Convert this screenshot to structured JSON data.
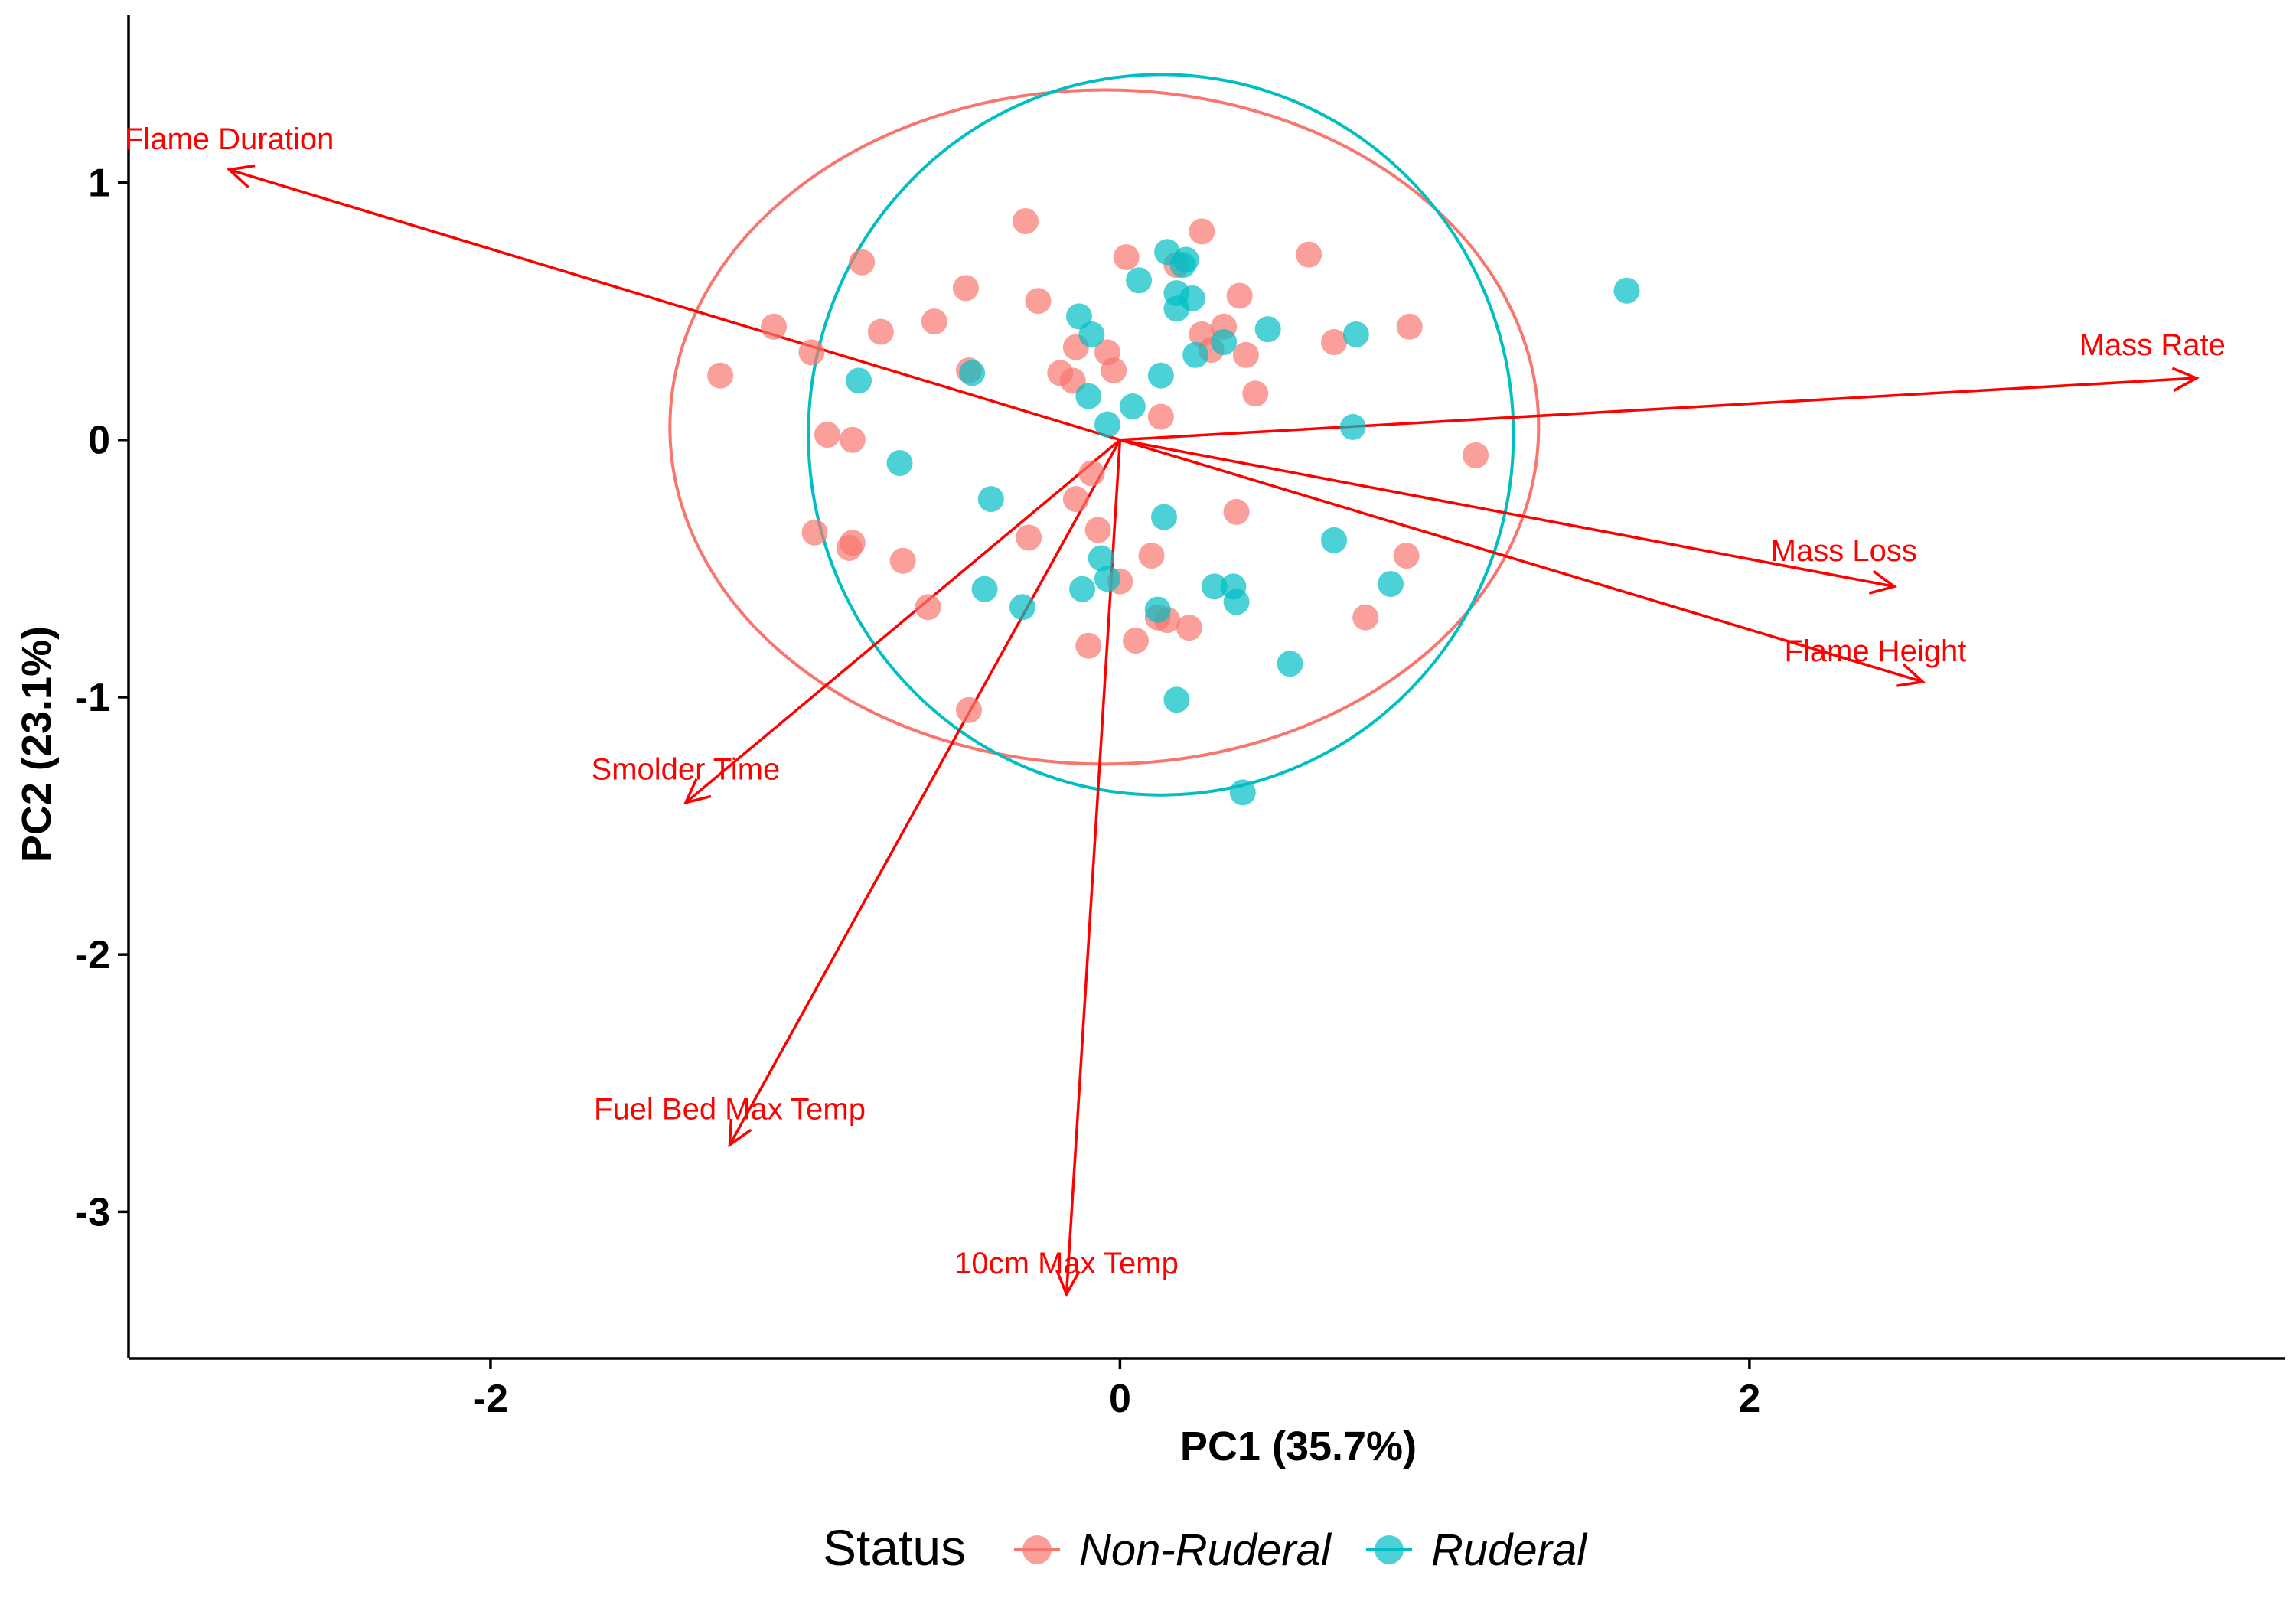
{
  "chart_data": {
    "type": "scatter",
    "subtype": "pca-biplot",
    "xlabel": "PC1 (35.7%)",
    "ylabel": "PC2 (23.1%)",
    "xlim": [
      -3.15,
      3.7
    ],
    "ylim": [
      -3.57,
      1.65
    ],
    "x_ticks": [
      -2,
      0,
      2
    ],
    "y_ticks": [
      1,
      0,
      -1,
      -2,
      -3
    ],
    "grid": false,
    "legend": {
      "title": "Status",
      "position": "bottom",
      "entries": [
        {
          "name": "Non-Ruderal",
          "color": "#F8766D"
        },
        {
          "name": "Ruderal",
          "color": "#00BFC4"
        }
      ]
    },
    "series": [
      {
        "name": "Non-Ruderal",
        "color": "#F8766D",
        "points": [
          [
            -1.27,
            0.25
          ],
          [
            -1.1,
            0.44
          ],
          [
            -0.98,
            0.34
          ],
          [
            -0.93,
            0.02
          ],
          [
            -0.85,
            0.0
          ],
          [
            -0.82,
            0.69
          ],
          [
            -0.76,
            0.42
          ],
          [
            -0.59,
            0.46
          ],
          [
            -0.49,
            0.59
          ],
          [
            -0.48,
            0.27
          ],
          [
            -0.3,
            0.85
          ],
          [
            -0.26,
            0.54
          ],
          [
            -0.19,
            0.26
          ],
          [
            -0.14,
            0.36
          ],
          [
            -0.15,
            0.23
          ],
          [
            -0.04,
            0.34
          ],
          [
            -0.02,
            0.27
          ],
          [
            0.02,
            0.71
          ],
          [
            0.13,
            0.09
          ],
          [
            0.18,
            0.68
          ],
          [
            0.26,
            0.41
          ],
          [
            0.26,
            0.81
          ],
          [
            0.29,
            0.35
          ],
          [
            0.33,
            0.44
          ],
          [
            0.38,
            0.56
          ],
          [
            0.4,
            0.33
          ],
          [
            0.43,
            0.18
          ],
          [
            0.6,
            0.72
          ],
          [
            0.68,
            0.38
          ],
          [
            0.92,
            0.44
          ],
          [
            1.13,
            -0.06
          ],
          [
            -0.97,
            -0.36
          ],
          [
            -0.85,
            -0.4
          ],
          [
            -0.86,
            -0.42
          ],
          [
            -0.69,
            -0.47
          ],
          [
            -0.61,
            -0.65
          ],
          [
            -0.29,
            -0.38
          ],
          [
            -0.14,
            -0.23
          ],
          [
            -0.09,
            -0.13
          ],
          [
            -0.07,
            -0.35
          ],
          [
            0.0,
            -0.55
          ],
          [
            -0.1,
            -0.8
          ],
          [
            0.05,
            -0.78
          ],
          [
            0.1,
            -0.45
          ],
          [
            0.12,
            -0.69
          ],
          [
            0.15,
            -0.7
          ],
          [
            0.22,
            -0.73
          ],
          [
            0.37,
            -0.28
          ],
          [
            0.78,
            -0.69
          ],
          [
            0.91,
            -0.45
          ],
          [
            -0.48,
            -1.05
          ]
        ]
      },
      {
        "name": "Ruderal",
        "color": "#00BFC4",
        "points": [
          [
            1.61,
            0.58
          ],
          [
            0.15,
            0.73
          ],
          [
            0.21,
            0.7
          ],
          [
            0.2,
            0.68
          ],
          [
            0.06,
            0.62
          ],
          [
            0.18,
            0.57
          ],
          [
            0.23,
            0.55
          ],
          [
            0.18,
            0.51
          ],
          [
            -0.13,
            0.48
          ],
          [
            -0.09,
            0.41
          ],
          [
            0.47,
            0.43
          ],
          [
            0.75,
            0.41
          ],
          [
            0.33,
            0.38
          ],
          [
            0.24,
            0.33
          ],
          [
            -0.47,
            0.26
          ],
          [
            -0.83,
            0.23
          ],
          [
            0.13,
            0.25
          ],
          [
            -0.1,
            0.17
          ],
          [
            0.04,
            0.13
          ],
          [
            -0.04,
            0.06
          ],
          [
            0.74,
            0.05
          ],
          [
            -0.7,
            -0.09
          ],
          [
            -0.41,
            -0.23
          ],
          [
            0.14,
            -0.3
          ],
          [
            0.68,
            -0.39
          ],
          [
            -0.06,
            -0.46
          ],
          [
            -0.04,
            -0.54
          ],
          [
            -0.12,
            -0.58
          ],
          [
            -0.43,
            -0.58
          ],
          [
            -0.31,
            -0.65
          ],
          [
            0.3,
            -0.57
          ],
          [
            0.36,
            -0.57
          ],
          [
            0.37,
            -0.63
          ],
          [
            0.12,
            -0.66
          ],
          [
            0.86,
            -0.56
          ],
          [
            0.54,
            -0.87
          ],
          [
            0.18,
            -1.01
          ],
          [
            0.39,
            -1.37
          ]
        ]
      }
    ],
    "ellipses": [
      {
        "series": "Non-Ruderal",
        "color": "#F8766D",
        "cx": -0.05,
        "cy": 0.05,
        "rx": 1.38,
        "ry": 1.31
      },
      {
        "series": "Ruderal",
        "color": "#00BFC4",
        "cx": 0.13,
        "cy": 0.02,
        "rx": 1.12,
        "ry": 1.4
      }
    ],
    "loadings": [
      {
        "label": "Flame Duration",
        "x": -2.83,
        "y": 1.05,
        "label_x": -2.83,
        "label_y": 1.13
      },
      {
        "label": "Mass Rate",
        "x": 3.42,
        "y": 0.24,
        "label_x": 3.28,
        "label_y": 0.33
      },
      {
        "label": "Mass Loss",
        "x": 2.46,
        "y": -0.57,
        "label_x": 2.3,
        "label_y": -0.47
      },
      {
        "label": "Flame Height",
        "x": 2.55,
        "y": -0.94,
        "label_x": 2.4,
        "label_y": -0.86
      },
      {
        "label": "Smolder Time",
        "x": -1.38,
        "y": -1.41,
        "label_x": -1.38,
        "label_y": -1.32
      },
      {
        "label": "Fuel Bed Max Temp",
        "x": -1.24,
        "y": -2.74,
        "label_x": -1.24,
        "label_y": -2.64
      },
      {
        "label": "10cm Max Temp",
        "x": -0.17,
        "y": -3.32,
        "label_x": -0.17,
        "label_y": -3.24
      }
    ]
  }
}
